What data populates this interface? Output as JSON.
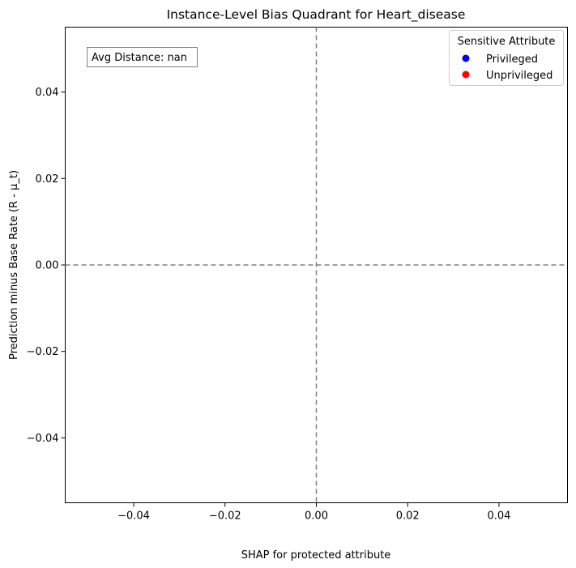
{
  "chart_data": {
    "type": "scatter",
    "title": "Instance-Level Bias Quadrant for Heart_disease",
    "xlabel": "SHAP for protected attribute",
    "ylabel": "Prediction minus Base Rate (R - μ_t)",
    "xlim": [
      -0.055,
      0.055
    ],
    "ylim": [
      -0.055,
      0.055
    ],
    "xticks": [
      -0.04,
      -0.02,
      0.0,
      0.02,
      0.04
    ],
    "xtick_labels": [
      "−0.04",
      "−0.02",
      "0.00",
      "0.02",
      "0.04"
    ],
    "yticks": [
      -0.04,
      -0.02,
      0.0,
      0.02,
      0.04
    ],
    "ytick_labels": [
      "−0.04",
      "−0.02",
      "0.00",
      "0.02",
      "0.04"
    ],
    "reference_lines": {
      "x": 0,
      "y": 0,
      "style": "dashed",
      "color": "#808080"
    },
    "series": [
      {
        "name": "Privileged",
        "color": "#0000ff",
        "x": [],
        "y": []
      },
      {
        "name": "Unprivileged",
        "color": "#ff0000",
        "x": [],
        "y": []
      }
    ],
    "legend": {
      "title": "Sensitive Attribute",
      "placement": "top-right",
      "entries": [
        "Privileged",
        "Unprivileged"
      ]
    },
    "annotation": {
      "text": "Avg Distance: nan",
      "placement": "top-left"
    },
    "grid": false
  }
}
